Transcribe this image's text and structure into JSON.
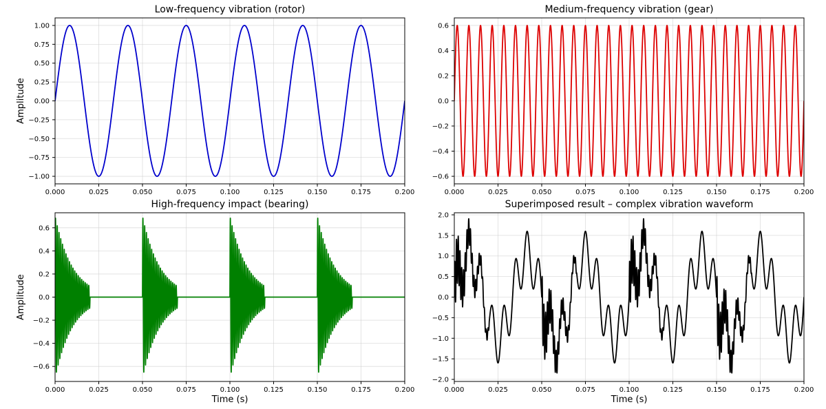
{
  "chart_data": [
    {
      "type": "line",
      "title": "Low-frequency vibration (rotor)",
      "xlabel": "",
      "ylabel": "Amplitude",
      "xlim": [
        0,
        0.2
      ],
      "ylim": [
        -1.1,
        1.1
      ],
      "xticks": [
        0,
        0.025,
        0.05,
        0.075,
        0.1,
        0.125,
        0.15,
        0.175,
        0.2
      ],
      "xtick_labels": [
        "0.000",
        "0.025",
        "0.050",
        "0.075",
        "0.100",
        "0.125",
        "0.150",
        "0.175",
        "0.200"
      ],
      "yticks": [
        -1,
        -0.75,
        -0.5,
        -0.25,
        0,
        0.25,
        0.5,
        0.75,
        1
      ],
      "ytick_labels": [
        "−1.00",
        "−0.75",
        "−0.50",
        "−0.25",
        "0.00",
        "0.25",
        "0.50",
        "0.75",
        "1.00"
      ],
      "grid": true,
      "series": [
        {
          "color": "#0000cc",
          "signal": "sine",
          "amplitude": 1.0,
          "frequency_hz": 30
        }
      ]
    },
    {
      "type": "line",
      "title": "Medium-frequency vibration (gear)",
      "xlabel": "",
      "ylabel": "",
      "xlim": [
        0,
        0.2
      ],
      "ylim": [
        -0.66,
        0.66
      ],
      "xticks": [
        0,
        0.025,
        0.05,
        0.075,
        0.1,
        0.125,
        0.15,
        0.175,
        0.2
      ],
      "xtick_labels": [
        "0.000",
        "0.025",
        "0.050",
        "0.075",
        "0.100",
        "0.125",
        "0.150",
        "0.175",
        "0.200"
      ],
      "yticks": [
        -0.6,
        -0.4,
        -0.2,
        0,
        0.2,
        0.4,
        0.6
      ],
      "ytick_labels": [
        "−0.6",
        "−0.4",
        "−0.2",
        "0.0",
        "0.2",
        "0.4",
        "0.6"
      ],
      "grid": true,
      "series": [
        {
          "color": "#dd0000",
          "signal": "sine",
          "amplitude": 0.6,
          "frequency_hz": 150
        }
      ]
    },
    {
      "type": "line",
      "title": "High-frequency impact (bearing)",
      "xlabel": "Time (s)",
      "ylabel": "Amplitude",
      "xlim": [
        0,
        0.2
      ],
      "ylim": [
        -0.73,
        0.73
      ],
      "xticks": [
        0,
        0.025,
        0.05,
        0.075,
        0.1,
        0.125,
        0.15,
        0.175,
        0.2
      ],
      "xtick_labels": [
        "0.000",
        "0.025",
        "0.050",
        "0.075",
        "0.100",
        "0.125",
        "0.150",
        "0.175",
        "0.200"
      ],
      "yticks": [
        -0.6,
        -0.4,
        -0.2,
        0,
        0.2,
        0.4,
        0.6
      ],
      "ytick_labels": [
        "−0.6",
        "−0.4",
        "−0.2",
        "0.0",
        "0.2",
        "0.4",
        "0.6"
      ],
      "grid": true,
      "series": [
        {
          "color": "#008000",
          "signal": "decaying-bursts",
          "amplitude": 0.7,
          "frequency_hz": 1000,
          "burst_starts_s": [
            0,
            0.05,
            0.1,
            0.15
          ],
          "burst_duration_s": 0.02,
          "decay_rate": 100
        }
      ]
    },
    {
      "type": "line",
      "title": "Superimposed result – complex vibration waveform",
      "xlabel": "Time (s)",
      "ylabel": "",
      "xlim": [
        0,
        0.2
      ],
      "ylim": [
        -2.05,
        2.05
      ],
      "xticks": [
        0,
        0.025,
        0.05,
        0.075,
        0.1,
        0.125,
        0.15,
        0.175,
        0.2
      ],
      "xtick_labels": [
        "0.000",
        "0.025",
        "0.050",
        "0.075",
        "0.100",
        "0.125",
        "0.150",
        "0.175",
        "0.200"
      ],
      "yticks": [
        -2,
        -1.5,
        -1,
        -0.5,
        0,
        0.5,
        1,
        1.5,
        2
      ],
      "ytick_labels": [
        "−2.0",
        "−1.5",
        "−1.0",
        "−0.5",
        "0.0",
        "0.5",
        "1.0",
        "1.5",
        "2.0"
      ],
      "grid": true,
      "series": [
        {
          "color": "#000000",
          "signal": "sum-of-above"
        }
      ]
    }
  ]
}
